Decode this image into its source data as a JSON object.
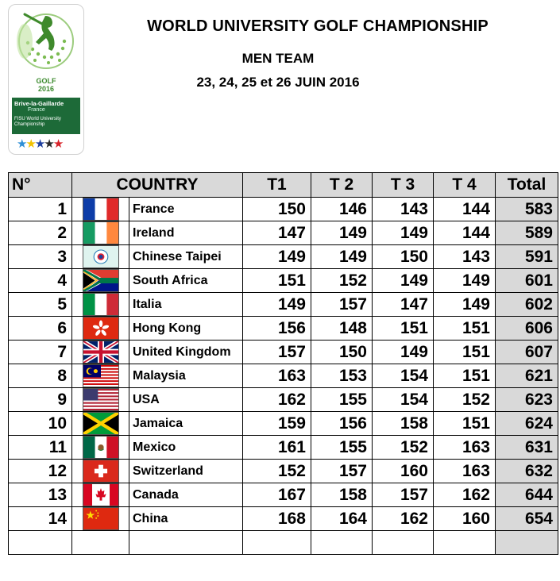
{
  "logo": {
    "golf": "GOLF",
    "year": "2016",
    "city": "Brive-la-Gaillarde",
    "country": "France",
    "line1": "FISU World University",
    "line2": "Championship"
  },
  "header": {
    "title": "WORLD UNIVERSITY GOLF CHAMPIONSHIP",
    "subtitle": "MEN TEAM",
    "dates": "23, 24, 25 et 26 JUIN 2016"
  },
  "table": {
    "headers": {
      "no": "N°",
      "country": "COUNTRY",
      "t1": "T1",
      "t2": "T 2",
      "t3": "T 3",
      "t4": "T 4",
      "total": "Total"
    },
    "rows": [
      {
        "rank": "1",
        "flag": "france-flag-icon",
        "country": "France",
        "t1": "150",
        "t2": "146",
        "t3": "143",
        "t4": "144",
        "total": "583"
      },
      {
        "rank": "2",
        "flag": "ireland-flag-icon",
        "country": "Ireland",
        "t1": "147",
        "t2": "149",
        "t3": "149",
        "t4": "144",
        "total": "589"
      },
      {
        "rank": "3",
        "flag": "chinese-taipei-flag-icon",
        "country": "Chinese Taipei",
        "t1": "149",
        "t2": "149",
        "t3": "150",
        "t4": "143",
        "total": "591"
      },
      {
        "rank": "4",
        "flag": "south-africa-flag-icon",
        "country": "South Africa",
        "t1": "151",
        "t2": "152",
        "t3": "149",
        "t4": "149",
        "total": "601"
      },
      {
        "rank": "5",
        "flag": "italy-flag-icon",
        "country": "Italia",
        "t1": "149",
        "t2": "157",
        "t3": "147",
        "t4": "149",
        "total": "602"
      },
      {
        "rank": "6",
        "flag": "hong-kong-flag-icon",
        "country": "Hong Kong",
        "t1": "156",
        "t2": "148",
        "t3": "151",
        "t4": "151",
        "total": "606"
      },
      {
        "rank": "7",
        "flag": "united-kingdom-flag-icon",
        "country": "United Kingdom",
        "t1": "157",
        "t2": "150",
        "t3": "149",
        "t4": "151",
        "total": "607"
      },
      {
        "rank": "8",
        "flag": "malaysia-flag-icon",
        "country": "Malaysia",
        "t1": "163",
        "t2": "153",
        "t3": "154",
        "t4": "151",
        "total": "621"
      },
      {
        "rank": "9",
        "flag": "usa-flag-icon",
        "country": "USA",
        "t1": "162",
        "t2": "155",
        "t3": "154",
        "t4": "152",
        "total": "623"
      },
      {
        "rank": "10",
        "flag": "jamaica-flag-icon",
        "country": "Jamaica",
        "t1": "159",
        "t2": "156",
        "t3": "158",
        "t4": "151",
        "total": "624"
      },
      {
        "rank": "11",
        "flag": "mexico-flag-icon",
        "country": "Mexico",
        "t1": "161",
        "t2": "155",
        "t3": "152",
        "t4": "163",
        "total": "631"
      },
      {
        "rank": "12",
        "flag": "switzerland-flag-icon",
        "country": "Switzerland",
        "t1": "152",
        "t2": "157",
        "t3": "160",
        "t4": "163",
        "total": "632"
      },
      {
        "rank": "13",
        "flag": "canada-flag-icon",
        "country": "Canada",
        "t1": "167",
        "t2": "158",
        "t3": "157",
        "t4": "162",
        "total": "644"
      },
      {
        "rank": "14",
        "flag": "china-flag-icon",
        "country": "China",
        "t1": "168",
        "t2": "164",
        "t3": "162",
        "t4": "160",
        "total": "654"
      }
    ]
  }
}
